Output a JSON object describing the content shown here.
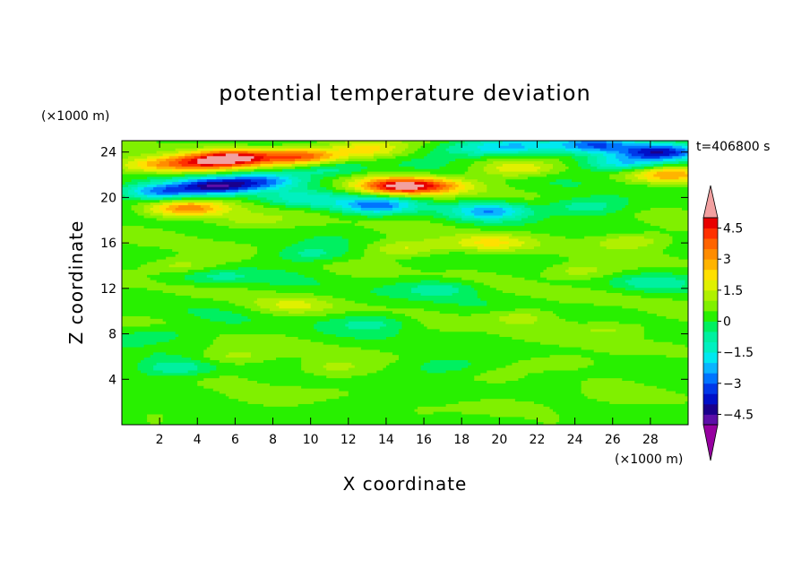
{
  "chart_data": {
    "type": "heatmap",
    "title": "potential temperature deviation",
    "xlabel": "X coordinate",
    "ylabel": "Z coordinate",
    "x_unit": "(×1000 m)",
    "y_unit": "(×1000 m)",
    "time_label": "t=406800 s",
    "xlim": [
      0,
      30
    ],
    "ylim": [
      0,
      25
    ],
    "x_ticks": [
      2,
      4,
      6,
      8,
      10,
      12,
      14,
      16,
      18,
      20,
      22,
      24,
      26,
      28
    ],
    "y_ticks": [
      4,
      8,
      12,
      16,
      20,
      24
    ],
    "colorbar": {
      "levels": [
        -5,
        -4.5,
        -4,
        -3.5,
        -3,
        -2.5,
        -2,
        -1.5,
        -1,
        -0.5,
        0,
        0.5,
        1,
        1.5,
        2,
        2.5,
        3,
        3.5,
        4,
        4.5,
        5
      ],
      "tick_values": [
        4.5,
        3,
        1.5,
        0,
        -1.5,
        -3,
        -4.5
      ],
      "tick_labels": [
        "4.5",
        "3",
        "1.5",
        "0",
        "−1.5",
        "−3",
        "−4.5"
      ],
      "colors": [
        "#5c0ea8",
        "#1a008c",
        "#0010c8",
        "#0038e8",
        "#0074ff",
        "#0ab4ff",
        "#00e8f0",
        "#00f0c0",
        "#00f0a0",
        "#00f060",
        "#28f000",
        "#80f000",
        "#b0f000",
        "#e0f000",
        "#ffe000",
        "#ffb400",
        "#ff8c00",
        "#ff6400",
        "#ff3000",
        "#e80000"
      ],
      "over_color": "#f2a0a0",
      "under_color": "#9600a0"
    },
    "features": [
      {
        "x": 6.0,
        "z": 23.5,
        "value": 4.2
      },
      {
        "x": 9.5,
        "z": 23.6,
        "value": 3.6
      },
      {
        "x": 4.0,
        "z": 23.0,
        "value": 2.8
      },
      {
        "x": 14.5,
        "z": 21.0,
        "value": 4.0
      },
      {
        "x": 16.5,
        "z": 21.0,
        "value": 2.2
      },
      {
        "x": 13.0,
        "z": 24.2,
        "value": 2.0
      },
      {
        "x": 29.0,
        "z": 22.0,
        "value": 2.5
      },
      {
        "x": 21.0,
        "z": 22.5,
        "value": 1.8
      },
      {
        "x": 3.5,
        "z": 19.0,
        "value": 3.0
      },
      {
        "x": 1.5,
        "z": 22.8,
        "value": 2.0
      },
      {
        "x": 5.0,
        "z": 21.0,
        "value": -4.2
      },
      {
        "x": 2.0,
        "z": 20.5,
        "value": -3.2
      },
      {
        "x": 7.5,
        "z": 21.5,
        "value": -2.5
      },
      {
        "x": 21.0,
        "z": 24.5,
        "value": -2.2
      },
      {
        "x": 25.0,
        "z": 24.6,
        "value": -3.0
      },
      {
        "x": 28.5,
        "z": 24.0,
        "value": -3.8
      },
      {
        "x": 26.5,
        "z": 23.0,
        "value": -2.5
      },
      {
        "x": 18.5,
        "z": 24.3,
        "value": -1.6
      },
      {
        "x": 11.0,
        "z": 22.5,
        "value": -1.5
      },
      {
        "x": 13.5,
        "z": 19.3,
        "value": -3.0
      },
      {
        "x": 19.5,
        "z": 18.8,
        "value": -2.5
      },
      {
        "x": 9.5,
        "z": 19.8,
        "value": -1.6
      },
      {
        "x": 24.5,
        "z": 19.2,
        "value": -1.5
      },
      {
        "x": 6.5,
        "z": 17.8,
        "value": 1.0
      },
      {
        "x": 15.0,
        "z": 15.5,
        "value": 1.5
      },
      {
        "x": 19.5,
        "z": 16.0,
        "value": 1.6
      },
      {
        "x": 27.0,
        "z": 16.2,
        "value": 1.3
      },
      {
        "x": 3.0,
        "z": 14.0,
        "value": 1.2
      },
      {
        "x": 24.0,
        "z": 13.5,
        "value": 1.2
      },
      {
        "x": 10.0,
        "z": 15.0,
        "value": -1.2
      },
      {
        "x": 5.0,
        "z": 13.0,
        "value": -1.0
      },
      {
        "x": 17.0,
        "z": 12.0,
        "value": -1.1
      },
      {
        "x": 28.0,
        "z": 12.5,
        "value": -1.0
      },
      {
        "x": 9.0,
        "z": 10.5,
        "value": 1.0
      },
      {
        "x": 21.0,
        "z": 9.5,
        "value": 1.0
      },
      {
        "x": 13.5,
        "z": 9.0,
        "value": -1.0
      },
      {
        "x": 2.0,
        "z": 8.0,
        "value": -0.9
      },
      {
        "x": 26.0,
        "z": 8.5,
        "value": 1.0
      },
      {
        "x": 6.0,
        "z": 6.0,
        "value": 0.9
      },
      {
        "x": 11.0,
        "z": 5.0,
        "value": 0.8
      },
      {
        "x": 23.0,
        "z": 5.5,
        "value": 0.8
      },
      {
        "x": 3.0,
        "z": 5.0,
        "value": -1.3
      },
      {
        "x": 17.5,
        "z": 5.2,
        "value": -0.8
      },
      {
        "x": 8.0,
        "z": 2.5,
        "value": 0.6
      },
      {
        "x": 20.0,
        "z": 1.5,
        "value": 0.6
      },
      {
        "x": 27.0,
        "z": 2.5,
        "value": 0.5
      }
    ]
  }
}
